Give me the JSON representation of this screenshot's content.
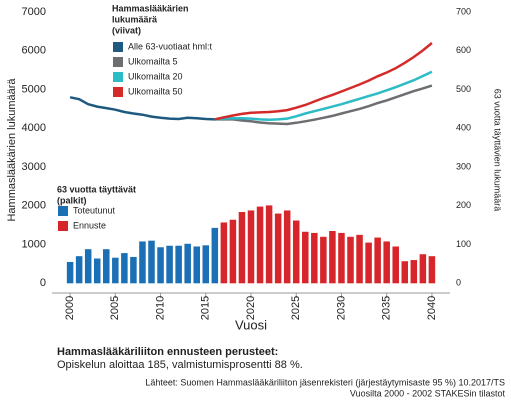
{
  "chart_data": {
    "type": "combo",
    "ylabel": "Hammaslääkärien lukumäärä",
    "y2label": "63 vuotta täyttävien lukumäärä",
    "xlabel": "Vuosi",
    "line_legend_title": [
      "Hammaslääkärien",
      "lukumäärä",
      "(viivat)"
    ],
    "bar_legend_title": [
      "63 vuotta täyttävät",
      "(palkit)"
    ],
    "xlim": [
      1998,
      2042
    ],
    "xticks": [
      2000,
      2005,
      2010,
      2015,
      2020,
      2025,
      2030,
      2035,
      2040
    ],
    "ylim": [
      -250,
      7000
    ],
    "yticks": [
      0,
      1000,
      2000,
      3000,
      4000,
      5000,
      6000,
      7000
    ],
    "y2lim": [
      -25,
      700
    ],
    "y2ticks": [
      0,
      100,
      200,
      300,
      400,
      500,
      600,
      700
    ],
    "grid": false,
    "x": [
      2000,
      2001,
      2002,
      2003,
      2004,
      2005,
      2006,
      2007,
      2008,
      2009,
      2010,
      2011,
      2012,
      2013,
      2014,
      2015,
      2016,
      2017,
      2018,
      2019,
      2020,
      2021,
      2022,
      2023,
      2024,
      2025,
      2026,
      2027,
      2028,
      2029,
      2030,
      2031,
      2032,
      2033,
      2034,
      2035,
      2036,
      2037,
      2038,
      2039,
      2040
    ],
    "bar_series": [
      {
        "name": "Toteutunut",
        "color": "#1a6fb5",
        "axis": "y2",
        "values": [
          55,
          70,
          88,
          64,
          88,
          66,
          78,
          68,
          108,
          110,
          93,
          97,
          97,
          102,
          95,
          98,
          143,
          null,
          null,
          null,
          null,
          null,
          null,
          null,
          null,
          null,
          null,
          null,
          null,
          null,
          null,
          null,
          null,
          null,
          null,
          null,
          null,
          null,
          null,
          null,
          null
        ]
      },
      {
        "name": "Ennuste",
        "color": "#d7262b",
        "axis": "y2",
        "values": [
          null,
          null,
          null,
          null,
          null,
          null,
          null,
          null,
          null,
          null,
          null,
          null,
          null,
          null,
          null,
          null,
          null,
          157,
          164,
          184,
          188,
          198,
          201,
          180,
          188,
          162,
          133,
          130,
          120,
          135,
          130,
          120,
          125,
          105,
          118,
          108,
          95,
          57,
          60,
          75,
          70
        ]
      }
    ],
    "series": [
      {
        "name": "Alle 63-vuotiaat hml:t",
        "color": "#1e5a80",
        "values": [
          4800,
          4750,
          4620,
          4560,
          4520,
          4480,
          4420,
          4380,
          4350,
          4300,
          4270,
          4250,
          4240,
          4270,
          4260,
          4240,
          4230,
          null,
          null,
          null,
          null,
          null,
          null,
          null,
          null,
          null,
          null,
          null,
          null,
          null,
          null,
          null,
          null,
          null,
          null,
          null,
          null,
          null,
          null,
          null,
          null
        ]
      },
      {
        "name": "Ulkomailta 5",
        "color": "#6d6e71",
        "values": [
          null,
          null,
          null,
          null,
          null,
          null,
          null,
          null,
          null,
          null,
          null,
          null,
          null,
          null,
          null,
          null,
          4230,
          4230,
          4230,
          4200,
          4180,
          4150,
          4130,
          4120,
          4110,
          4140,
          4180,
          4220,
          4270,
          4320,
          4380,
          4440,
          4500,
          4570,
          4650,
          4720,
          4800,
          4880,
          4960,
          5030,
          5100
        ]
      },
      {
        "name": "Ulkomailta 20",
        "color": "#2bbcc6",
        "values": [
          null,
          null,
          null,
          null,
          null,
          null,
          null,
          null,
          null,
          null,
          null,
          null,
          null,
          null,
          null,
          null,
          4230,
          4250,
          4260,
          4260,
          4250,
          4230,
          4220,
          4230,
          4250,
          4310,
          4380,
          4440,
          4500,
          4560,
          4620,
          4690,
          4760,
          4830,
          4900,
          4980,
          5060,
          5150,
          5240,
          5350,
          5460
        ]
      },
      {
        "name": "Ulkomailta 50",
        "color": "#d42a2a",
        "values": [
          null,
          null,
          null,
          null,
          null,
          null,
          null,
          null,
          null,
          null,
          null,
          null,
          null,
          null,
          null,
          null,
          4230,
          4280,
          4330,
          4370,
          4400,
          4410,
          4420,
          4440,
          4470,
          4530,
          4600,
          4690,
          4780,
          4860,
          4950,
          5040,
          5130,
          5230,
          5340,
          5440,
          5550,
          5690,
          5840,
          6010,
          6200
        ]
      }
    ]
  },
  "footer": {
    "heading": "Hammaslääkäriliiton ennusteen perusteet:",
    "text": "Opiskelun aloittaa 185, valmistumisprosentti 88 %.",
    "sources": [
      "Lähteet: Suomen Hammaslääkäriliiton jäsenrekisteri (järjestäytymisaste 95 %) 10.2017/TS",
      "Vuosilta 2000 - 2002 STAKESin tilastot"
    ]
  }
}
